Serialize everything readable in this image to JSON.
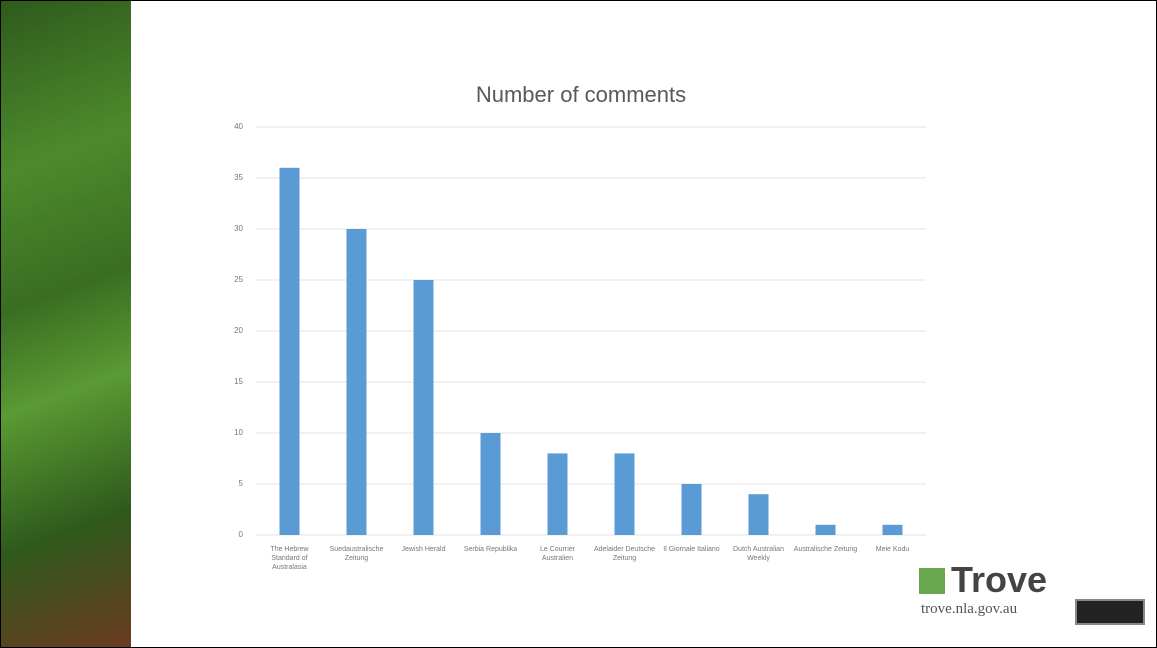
{
  "chart_data": {
    "type": "bar",
    "title": "Number of comments",
    "categories": [
      "The Hebrew Standard of Australasia",
      "Suedaustralische Zeitung",
      "Jewish Herald",
      "Serbia Republika",
      "Le Courrier Australien",
      "Adelaider Deutsche Zeitung",
      "Il Giornale Italiano",
      "Dutch Australian Weekly",
      "Australische Zeitung",
      "Meie Kodu"
    ],
    "values": [
      36,
      30,
      25,
      10,
      8,
      8,
      5,
      4,
      1,
      1
    ],
    "color": "#5b9bd5",
    "ylim": [
      0,
      40
    ],
    "yticks": [
      0,
      5,
      10,
      15,
      20,
      25,
      30,
      35,
      40
    ],
    "grid": true
  },
  "branding": {
    "logo": "Trove",
    "url": "trove.nla.gov.au"
  }
}
